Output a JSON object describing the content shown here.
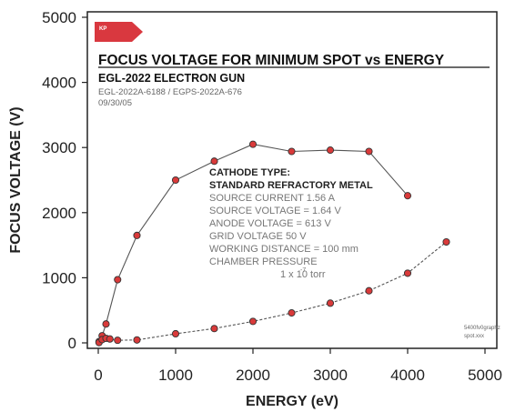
{
  "chart_data": {
    "type": "line",
    "title": "FOCUS VOLTAGE FOR MINIMUM SPOT vs ENERGY",
    "subtitle": "EGL-2022 ELECTRON GUN",
    "meta_lines": [
      "EGL-2022A-6188 / EGPS-2022A-676",
      "09/30/05"
    ],
    "xlabel": "ENERGY (eV)",
    "ylabel": "FOCUS VOLTAGE (V)",
    "xlim": [
      0,
      5000
    ],
    "ylim": [
      0,
      5000
    ],
    "x_ticks": [
      "0",
      "1000",
      "2000",
      "3000",
      "4000",
      "5000"
    ],
    "y_ticks": [
      "0",
      "1000",
      "2000",
      "3000",
      "4000",
      "5000"
    ],
    "grid": false,
    "series": [
      {
        "style": "solid",
        "points": [
          [
            10,
            20
          ],
          [
            50,
            110
          ],
          [
            100,
            290
          ],
          [
            250,
            970
          ],
          [
            500,
            1650
          ],
          [
            1000,
            2500
          ],
          [
            1500,
            2790
          ],
          [
            2000,
            3050
          ],
          [
            2500,
            2940
          ],
          [
            3000,
            2960
          ],
          [
            3500,
            2940
          ],
          [
            4000,
            2260
          ]
        ]
      },
      {
        "style": "dashed",
        "points": [
          [
            10,
            5
          ],
          [
            50,
            50
          ],
          [
            100,
            70
          ],
          [
            150,
            60
          ],
          [
            250,
            40
          ],
          [
            500,
            45
          ],
          [
            1000,
            140
          ],
          [
            1500,
            220
          ],
          [
            2000,
            330
          ],
          [
            2500,
            460
          ],
          [
            3000,
            610
          ],
          [
            3500,
            800
          ],
          [
            4000,
            1070
          ],
          [
            4500,
            1550
          ]
        ]
      }
    ],
    "marker_color": "#d93a3a",
    "line_color": "#555555",
    "annotation": {
      "heading_lines": [
        "CATHODE TYPE:",
        "STANDARD REFRACTORY METAL"
      ],
      "lines": [
        "SOURCE CURRENT    1.56 A",
        "SOURCE VOLTAGE = 1.64 V",
        "ANODE VOLTAGE = 613 V",
        "GRID VOLTAGE    50 V",
        "WORKING DISTANCE = 100 mm",
        "CHAMBER PRESSURE",
        "1 x 10   torr"
      ],
      "exponent": "-7"
    },
    "logo": {
      "text": "KP",
      "color": "#d9383f"
    },
    "corner_lines": [
      "5400fv0graphz",
      "spot.xxx"
    ]
  }
}
